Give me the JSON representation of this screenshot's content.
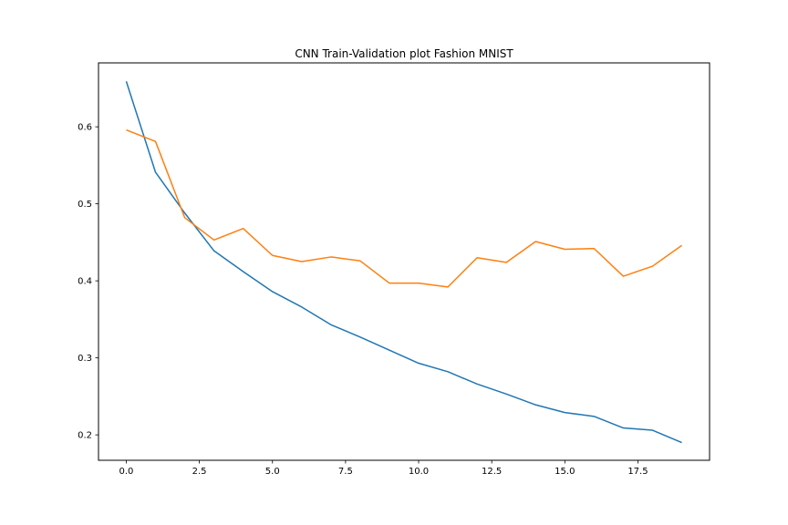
{
  "chart_data": {
    "type": "line",
    "title": "CNN Train-Validation plot Fashion MNIST",
    "xlabel": "",
    "ylabel": "",
    "xlim": [
      -0.95,
      19.95
    ],
    "ylim": [
      0.167,
      0.683
    ],
    "x_ticks": [
      0,
      2.5,
      5,
      7.5,
      10,
      12.5,
      15,
      17.5
    ],
    "x_tick_labels": [
      "0.0",
      "2.5",
      "5.0",
      "7.5",
      "10.0",
      "12.5",
      "15.0",
      "17.5"
    ],
    "y_ticks": [
      0.2,
      0.3,
      0.4,
      0.5,
      0.6
    ],
    "y_tick_labels": [
      "0.2",
      "0.3",
      "0.4",
      "0.5",
      "0.6"
    ],
    "grid": false,
    "legend": "none",
    "x": [
      0,
      1,
      2,
      3,
      4,
      5,
      6,
      7,
      8,
      9,
      10,
      11,
      12,
      13,
      14,
      15,
      16,
      17,
      18,
      19
    ],
    "series": [
      {
        "color": "#1f77b4",
        "values": [
          0.659,
          0.541,
          0.488,
          0.439,
          0.412,
          0.386,
          0.366,
          0.343,
          0.327,
          0.31,
          0.293,
          0.282,
          0.266,
          0.253,
          0.239,
          0.229,
          0.224,
          0.209,
          0.206,
          0.19
        ]
      },
      {
        "color": "#ff7f0e",
        "values": [
          0.596,
          0.581,
          0.482,
          0.453,
          0.468,
          0.433,
          0.425,
          0.431,
          0.426,
          0.397,
          0.397,
          0.392,
          0.43,
          0.424,
          0.451,
          0.441,
          0.442,
          0.406,
          0.419,
          0.446
        ]
      }
    ]
  }
}
